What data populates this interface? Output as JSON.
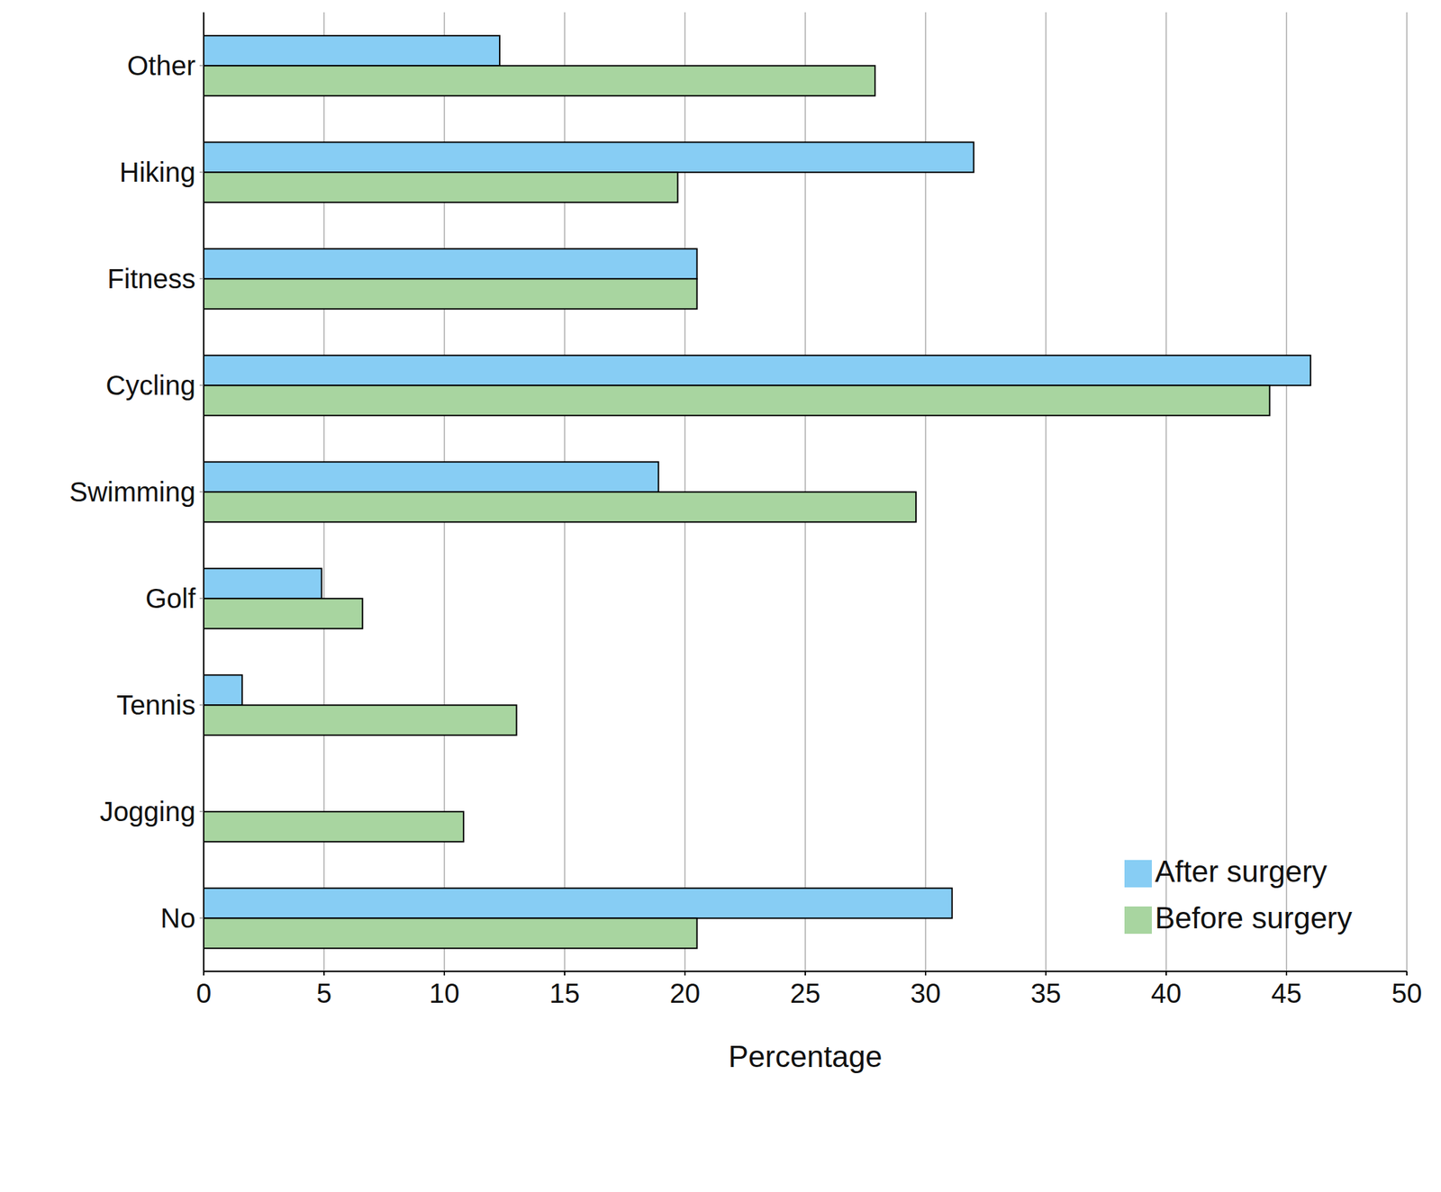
{
  "chart_data": {
    "type": "bar",
    "orientation": "horizontal",
    "categories": [
      "Other",
      "Hiking",
      "Fitness",
      "Cycling",
      "Swimming",
      "Golf",
      "Tennis",
      "Jogging",
      "No"
    ],
    "series": [
      {
        "name": "After surgery",
        "color": "#87cdf4",
        "values": [
          12.3,
          32.0,
          20.5,
          46.0,
          18.9,
          4.9,
          1.6,
          0,
          31.1
        ]
      },
      {
        "name": "Before surgery",
        "color": "#a8d5a0",
        "values": [
          27.9,
          19.7,
          20.5,
          44.3,
          29.6,
          6.6,
          13.0,
          10.8,
          20.5
        ]
      }
    ],
    "x_label": "Percentage",
    "xlim": [
      0,
      50
    ],
    "xticks": [
      0,
      5,
      10,
      15,
      20,
      25,
      30,
      35,
      40,
      45,
      50
    ],
    "grid": true,
    "legend": "lower right"
  }
}
